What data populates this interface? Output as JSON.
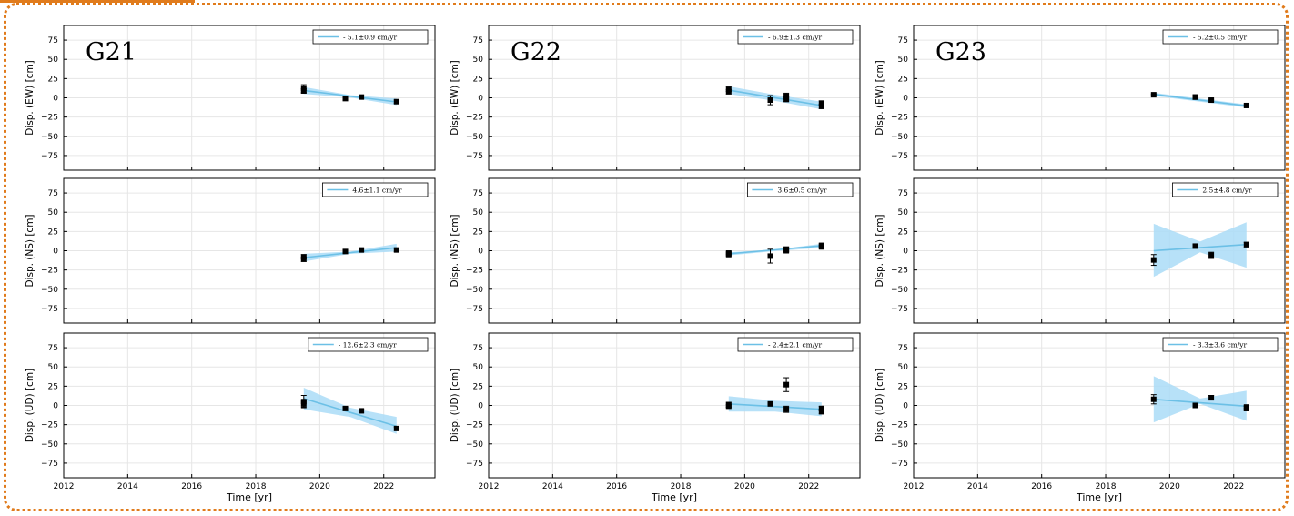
{
  "colors": {
    "frame": "#e07b1c",
    "band": "#aadcf7",
    "line": "#6cc0e6",
    "point": "#000000"
  },
  "layout_labels": {
    "x_axis_label": "Time [yr]",
    "x_ticks": [
      "2012",
      "2014",
      "2016",
      "2018",
      "2020",
      "2022"
    ],
    "y_ticks": [
      "75",
      "50",
      "25",
      "0",
      "−25",
      "−50",
      "−75"
    ]
  },
  "chart_data": [
    {
      "type": "scatter",
      "station": "G21",
      "component": "EW",
      "ylabel": "Disp. (EW) [cm]",
      "legend": "- 5.1±0.9 cm/yr",
      "xlim": [
        2012,
        2023.6
      ],
      "ylim": [
        -94,
        94
      ],
      "points": [
        {
          "x": 2019.5,
          "y": 12,
          "err": 5
        },
        {
          "x": 2019.5,
          "y": 9,
          "err": 3
        },
        {
          "x": 2020.8,
          "y": -1,
          "err": 2
        },
        {
          "x": 2021.3,
          "y": 1,
          "err": 2
        },
        {
          "x": 2022.4,
          "y": -5,
          "err": 2
        }
      ],
      "fit": {
        "x": [
          2019.5,
          2022.4
        ],
        "y": [
          9.5,
          -5.3
        ]
      },
      "band": {
        "x": [
          2019.5,
          2020.95,
          2022.4
        ],
        "upper": [
          14,
          3.5,
          -1
        ],
        "lower": [
          5,
          0.5,
          -9.5
        ]
      }
    },
    {
      "type": "scatter",
      "station": "G22",
      "component": "EW",
      "ylabel": "Disp. (EW) [cm]",
      "legend": "- 6.9±1.3 cm/yr",
      "xlim": [
        2012,
        2023.6
      ],
      "ylim": [
        -94,
        94
      ],
      "points": [
        {
          "x": 2019.5,
          "y": 11,
          "err": 3
        },
        {
          "x": 2019.5,
          "y": 8,
          "err": 3
        },
        {
          "x": 2020.8,
          "y": -3,
          "err": 6
        },
        {
          "x": 2021.3,
          "y": 2,
          "err": 4
        },
        {
          "x": 2021.3,
          "y": -2,
          "err": 3
        },
        {
          "x": 2022.4,
          "y": -7,
          "err": 3
        },
        {
          "x": 2022.4,
          "y": -11,
          "err": 3
        }
      ],
      "fit": {
        "x": [
          2019.5,
          2022.4
        ],
        "y": [
          10,
          -10
        ]
      },
      "band": {
        "x": [
          2019.5,
          2020.95,
          2022.4
        ],
        "upper": [
          15,
          4,
          -5
        ],
        "lower": [
          5,
          -4,
          -15
        ]
      }
    },
    {
      "type": "scatter",
      "station": "G23",
      "component": "EW",
      "ylabel": "Disp. (EW) [cm]",
      "legend": "- 5.2±0.5 cm/yr",
      "xlim": [
        2012,
        2023.6
      ],
      "ylim": [
        -94,
        94
      ],
      "points": [
        {
          "x": 2019.5,
          "y": 4,
          "err": 1
        },
        {
          "x": 2020.8,
          "y": 1,
          "err": 3
        },
        {
          "x": 2021.3,
          "y": -3,
          "err": 1
        },
        {
          "x": 2022.4,
          "y": -10,
          "err": 1
        }
      ],
      "fit": {
        "x": [
          2019.5,
          2022.4
        ],
        "y": [
          4.5,
          -10.5
        ]
      },
      "band": {
        "x": [
          2019.5,
          2020.95,
          2022.4
        ],
        "upper": [
          6.5,
          -1,
          -8.5
        ],
        "lower": [
          2.5,
          -5,
          -12.5
        ]
      }
    },
    {
      "type": "scatter",
      "station": "G21",
      "component": "NS",
      "ylabel": "Disp. (NS) [cm]",
      "legend": "4.6±1.1 cm/yr",
      "xlim": [
        2012,
        2023.6
      ],
      "ylim": [
        -94,
        94
      ],
      "points": [
        {
          "x": 2019.5,
          "y": -8,
          "err": 3
        },
        {
          "x": 2019.5,
          "y": -11,
          "err": 3
        },
        {
          "x": 2020.8,
          "y": -1,
          "err": 2
        },
        {
          "x": 2021.3,
          "y": 1,
          "err": 2
        },
        {
          "x": 2022.4,
          "y": 1,
          "err": 2
        }
      ],
      "fit": {
        "x": [
          2019.5,
          2022.4
        ],
        "y": [
          -9,
          4
        ]
      },
      "band": {
        "x": [
          2019.5,
          2020.95,
          2022.4
        ],
        "upper": [
          -4,
          -1,
          9
        ],
        "lower": [
          -14,
          -4,
          -1
        ]
      }
    },
    {
      "type": "scatter",
      "station": "G22",
      "component": "NS",
      "ylabel": "Disp. (NS) [cm]",
      "legend": "3.6±0.5 cm/yr",
      "xlim": [
        2012,
        2023.6
      ],
      "ylim": [
        -94,
        94
      ],
      "points": [
        {
          "x": 2019.5,
          "y": -3,
          "err": 2
        },
        {
          "x": 2019.5,
          "y": -5,
          "err": 2
        },
        {
          "x": 2020.8,
          "y": -7,
          "err": 9
        },
        {
          "x": 2021.3,
          "y": 2,
          "err": 3
        },
        {
          "x": 2021.3,
          "y": 0,
          "err": 2
        },
        {
          "x": 2022.4,
          "y": 7,
          "err": 2
        },
        {
          "x": 2022.4,
          "y": 5,
          "err": 2
        }
      ],
      "fit": {
        "x": [
          2019.5,
          2022.4
        ],
        "y": [
          -4,
          6.5
        ]
      },
      "band": {
        "x": [
          2019.5,
          2020.95,
          2022.4
        ],
        "upper": [
          -2,
          1.5,
          9
        ],
        "lower": [
          -6,
          -0.5,
          4
        ]
      }
    },
    {
      "type": "scatter",
      "station": "G23",
      "component": "NS",
      "ylabel": "Disp. (NS) [cm]",
      "legend": "2.5±4.8 cm/yr",
      "xlim": [
        2012,
        2023.6
      ],
      "ylim": [
        -94,
        94
      ],
      "points": [
        {
          "x": 2019.5,
          "y": -12,
          "err": 7
        },
        {
          "x": 2020.8,
          "y": 6,
          "err": 2
        },
        {
          "x": 2021.3,
          "y": -6,
          "err": 4
        },
        {
          "x": 2022.4,
          "y": 8,
          "err": 3
        }
      ],
      "fit": {
        "x": [
          2019.5,
          2022.4
        ],
        "y": [
          0,
          8
        ]
      },
      "band": {
        "x": [
          2019.5,
          2020.95,
          2022.4
        ],
        "upper": [
          35,
          12,
          37
        ],
        "lower": [
          -34,
          -2,
          -22
        ]
      }
    },
    {
      "type": "scatter",
      "station": "G21",
      "component": "UD",
      "ylabel": "Disp. (UD) [cm]",
      "legend": "- 12.6±2.3 cm/yr",
      "xlim": [
        2012,
        2023.6
      ],
      "ylim": [
        -94,
        94
      ],
      "points": [
        {
          "x": 2019.5,
          "y": 5,
          "err": 8
        },
        {
          "x": 2019.5,
          "y": 2,
          "err": 4
        },
        {
          "x": 2020.8,
          "y": -4,
          "err": 2
        },
        {
          "x": 2021.3,
          "y": -7,
          "err": 2
        },
        {
          "x": 2022.4,
          "y": -30,
          "err": 2
        }
      ],
      "fit": {
        "x": [
          2019.5,
          2022.4
        ],
        "y": [
          9,
          -27
        ]
      },
      "band": {
        "x": [
          2019.5,
          2020.95,
          2022.4
        ],
        "upper": [
          23,
          -3,
          -15
        ],
        "lower": [
          -5,
          -15,
          -37
        ]
      }
    },
    {
      "type": "scatter",
      "station": "G22",
      "component": "UD",
      "ylabel": "Disp. (UD) [cm]",
      "legend": "- 2.4±2.1 cm/yr",
      "xlim": [
        2012,
        2023.6
      ],
      "ylim": [
        -94,
        94
      ],
      "points": [
        {
          "x": 2019.5,
          "y": 1,
          "err": 3
        },
        {
          "x": 2019.5,
          "y": -1,
          "err": 2
        },
        {
          "x": 2020.8,
          "y": 2,
          "err": 1
        },
        {
          "x": 2021.3,
          "y": 27,
          "err": 9
        },
        {
          "x": 2021.3,
          "y": -5,
          "err": 4
        },
        {
          "x": 2022.4,
          "y": -4,
          "err": 3
        },
        {
          "x": 2022.4,
          "y": -8,
          "err": 3
        }
      ],
      "fit": {
        "x": [
          2019.5,
          2022.4
        ],
        "y": [
          2,
          -5
        ]
      },
      "band": {
        "x": [
          2019.5,
          2020.95,
          2022.4
        ],
        "upper": [
          12,
          6,
          4
        ],
        "lower": [
          -8,
          -8,
          -14
        ]
      }
    },
    {
      "type": "scatter",
      "station": "G23",
      "component": "UD",
      "ylabel": "Disp. (UD) [cm]",
      "legend": "- 3.3±3.6 cm/yr",
      "xlim": [
        2012,
        2023.6
      ],
      "ylim": [
        -94,
        94
      ],
      "points": [
        {
          "x": 2019.5,
          "y": 8,
          "err": 6
        },
        {
          "x": 2020.8,
          "y": 0,
          "err": 2
        },
        {
          "x": 2021.3,
          "y": 10,
          "err": 3
        },
        {
          "x": 2022.4,
          "y": -4,
          "err": 3
        },
        {
          "x": 2022.4,
          "y": -2,
          "err": 2
        }
      ],
      "fit": {
        "x": [
          2019.5,
          2022.4
        ],
        "y": [
          8,
          -1
        ]
      },
      "band": {
        "x": [
          2019.5,
          2020.95,
          2022.4
        ],
        "upper": [
          38,
          9,
          19
        ],
        "lower": [
          -22,
          2,
          -20
        ]
      }
    }
  ]
}
